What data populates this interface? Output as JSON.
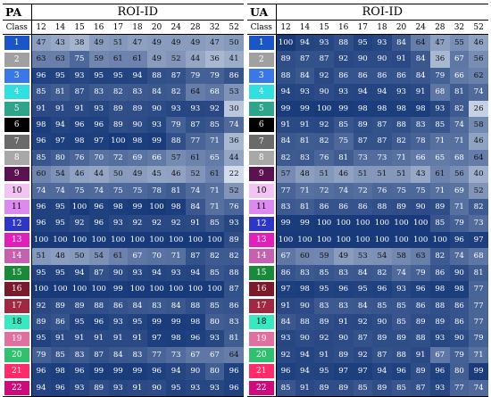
{
  "roi_ids": [
    "12",
    "14",
    "15",
    "16",
    "17",
    "18",
    "20",
    "24",
    "28",
    "32",
    "52"
  ],
  "class_colors": [
    "#1b55c8",
    "#a0a0a0",
    "#3a78e8",
    "#30e0e0",
    "#2ea58a",
    "#000000",
    "#6a6a6a",
    "#a8a8a8",
    "#5a1350",
    "#f2c4f2",
    "#dc8af0",
    "#2e36c8",
    "#e020b8",
    "#c860b0",
    "#1a8a3a",
    "#7a1a2a",
    "#a02840",
    "#38e8c0",
    "#e070a0",
    "#30c070",
    "#ff2b6b",
    "#d00a7a",
    "#fff233"
  ],
  "class_text_colors": [
    "#fff",
    "#fff",
    "#fff",
    "#fff",
    "#fff",
    "#fff",
    "#fff",
    "#fff",
    "#fff",
    "#000",
    "#000",
    "#fff",
    "#fff",
    "#fff",
    "#fff",
    "#fff",
    "#fff",
    "#000",
    "#fff",
    "#fff",
    "#fff",
    "#fff",
    "#000"
  ],
  "pa": {
    "title": "PA",
    "roi_label": "ROI-ID",
    "class_label": "Class",
    "rows": [
      {
        "cls": "1",
        "values": [
          "47",
          "43",
          "38",
          "49",
          "51",
          "47",
          "49",
          "49",
          "49",
          "47",
          "50"
        ]
      },
      {
        "cls": "2",
        "values": [
          "63",
          "63",
          "75",
          "59",
          "61",
          "61",
          "49",
          "52",
          "44",
          "36",
          "41"
        ]
      },
      {
        "cls": "3",
        "values": [
          "96",
          "95",
          "93",
          "95",
          "95",
          "94",
          "88",
          "87",
          "79",
          "79",
          "86"
        ]
      },
      {
        "cls": "4",
        "values": [
          "85",
          "81",
          "87",
          "83",
          "82",
          "83",
          "84",
          "82",
          "64",
          "68",
          "53"
        ]
      },
      {
        "cls": "5",
        "values": [
          "91",
          "91",
          "91",
          "93",
          "89",
          "89",
          "90",
          "93",
          "93",
          "92",
          "30"
        ]
      },
      {
        "cls": "6",
        "values": [
          "98",
          "94",
          "96",
          "96",
          "89",
          "90",
          "93",
          "79",
          "87",
          "85",
          "74"
        ]
      },
      {
        "cls": "7",
        "values": [
          "96",
          "97",
          "98",
          "97",
          "100",
          "98",
          "99",
          "88",
          "77",
          "71",
          "36"
        ]
      },
      {
        "cls": "8",
        "values": [
          "85",
          "80",
          "76",
          "70",
          "72",
          "69",
          "66",
          "57",
          "61",
          "65",
          "44"
        ]
      },
      {
        "cls": "9",
        "values": [
          "60",
          "54",
          "46",
          "44",
          "50",
          "49",
          "45",
          "46",
          "52",
          "61",
          "22"
        ]
      },
      {
        "cls": "10",
        "values": [
          "74",
          "74",
          "75",
          "74",
          "75",
          "75",
          "78",
          "81",
          "74",
          "71",
          "52"
        ]
      },
      {
        "cls": "11",
        "values": [
          "96",
          "95",
          "100",
          "96",
          "98",
          "99",
          "100",
          "98",
          "84",
          "71",
          "76"
        ]
      },
      {
        "cls": "12",
        "values": [
          "96",
          "95",
          "92",
          "96",
          "93",
          "92",
          "92",
          "92",
          "91",
          "85",
          "93"
        ]
      },
      {
        "cls": "13",
        "values": [
          "100",
          "100",
          "100",
          "100",
          "100",
          "100",
          "100",
          "100",
          "100",
          "100",
          "89"
        ]
      },
      {
        "cls": "14",
        "values": [
          "51",
          "48",
          "50",
          "54",
          "61",
          "67",
          "70",
          "71",
          "87",
          "82",
          "82"
        ]
      },
      {
        "cls": "15",
        "values": [
          "95",
          "95",
          "94",
          "87",
          "90",
          "93",
          "94",
          "93",
          "94",
          "85",
          "88"
        ]
      },
      {
        "cls": "16",
        "values": [
          "100",
          "100",
          "100",
          "100",
          "99",
          "100",
          "100",
          "100",
          "100",
          "100",
          "87"
        ]
      },
      {
        "cls": "17",
        "values": [
          "92",
          "89",
          "89",
          "88",
          "86",
          "84",
          "83",
          "84",
          "88",
          "85",
          "86"
        ]
      },
      {
        "cls": "18",
        "values": [
          "89",
          "86",
          "95",
          "96",
          "93",
          "95",
          "99",
          "99",
          "98",
          "80",
          "83"
        ]
      },
      {
        "cls": "19",
        "values": [
          "95",
          "91",
          "91",
          "91",
          "91",
          "91",
          "97",
          "98",
          "96",
          "93",
          "81"
        ]
      },
      {
        "cls": "20",
        "values": [
          "79",
          "85",
          "83",
          "87",
          "84",
          "83",
          "77",
          "73",
          "67",
          "67",
          "64"
        ]
      },
      {
        "cls": "21",
        "values": [
          "96",
          "98",
          "96",
          "99",
          "99",
          "99",
          "96",
          "94",
          "90",
          "80",
          "96"
        ]
      },
      {
        "cls": "22",
        "values": [
          "94",
          "96",
          "93",
          "89",
          "93",
          "91",
          "90",
          "95",
          "93",
          "93",
          "96"
        ]
      }
    ]
  },
  "ua": {
    "title": "UA",
    "roi_label": "ROI-ID",
    "class_label": "Class",
    "rows": [
      {
        "cls": "1",
        "values": [
          "100",
          "94",
          "93",
          "88",
          "95",
          "93",
          "84",
          "64",
          "47",
          "55",
          "46"
        ]
      },
      {
        "cls": "2",
        "values": [
          "89",
          "87",
          "87",
          "92",
          "90",
          "90",
          "91",
          "84",
          "36",
          "67",
          "56"
        ]
      },
      {
        "cls": "3",
        "values": [
          "88",
          "84",
          "92",
          "86",
          "86",
          "86",
          "86",
          "84",
          "79",
          "66",
          "62"
        ]
      },
      {
        "cls": "4",
        "values": [
          "94",
          "93",
          "90",
          "93",
          "94",
          "94",
          "93",
          "91",
          "68",
          "81",
          "74"
        ]
      },
      {
        "cls": "5",
        "values": [
          "99",
          "99",
          "100",
          "99",
          "98",
          "98",
          "98",
          "98",
          "93",
          "82",
          "26"
        ]
      },
      {
        "cls": "6",
        "values": [
          "91",
          "91",
          "92",
          "85",
          "89",
          "87",
          "88",
          "83",
          "85",
          "74",
          "58"
        ]
      },
      {
        "cls": "7",
        "values": [
          "84",
          "81",
          "82",
          "75",
          "87",
          "87",
          "82",
          "78",
          "71",
          "71",
          "46"
        ]
      },
      {
        "cls": "8",
        "values": [
          "82",
          "83",
          "76",
          "81",
          "73",
          "73",
          "71",
          "66",
          "65",
          "68",
          "64"
        ]
      },
      {
        "cls": "9",
        "values": [
          "57",
          "48",
          "51",
          "46",
          "51",
          "51",
          "51",
          "43",
          "61",
          "56",
          "40"
        ]
      },
      {
        "cls": "10",
        "values": [
          "77",
          "71",
          "72",
          "74",
          "72",
          "76",
          "75",
          "75",
          "71",
          "69",
          "52"
        ]
      },
      {
        "cls": "11",
        "values": [
          "83",
          "81",
          "86",
          "86",
          "86",
          "88",
          "89",
          "90",
          "89",
          "71",
          "82"
        ]
      },
      {
        "cls": "12",
        "values": [
          "99",
          "99",
          "100",
          "100",
          "100",
          "100",
          "100",
          "100",
          "85",
          "79",
          "73"
        ]
      },
      {
        "cls": "13",
        "values": [
          "100",
          "100",
          "100",
          "100",
          "100",
          "100",
          "100",
          "100",
          "100",
          "96",
          "97"
        ]
      },
      {
        "cls": "14",
        "values": [
          "67",
          "60",
          "59",
          "49",
          "53",
          "54",
          "58",
          "63",
          "82",
          "74",
          "68"
        ]
      },
      {
        "cls": "15",
        "values": [
          "86",
          "83",
          "85",
          "83",
          "84",
          "82",
          "74",
          "79",
          "86",
          "90",
          "81"
        ]
      },
      {
        "cls": "16",
        "values": [
          "97",
          "98",
          "95",
          "96",
          "95",
          "96",
          "93",
          "96",
          "98",
          "98",
          "77"
        ]
      },
      {
        "cls": "17",
        "values": [
          "91",
          "90",
          "83",
          "83",
          "84",
          "85",
          "85",
          "86",
          "88",
          "86",
          "77"
        ]
      },
      {
        "cls": "18",
        "values": [
          "84",
          "88",
          "89",
          "91",
          "92",
          "90",
          "85",
          "89",
          "89",
          "86",
          "77"
        ]
      },
      {
        "cls": "19",
        "values": [
          "93",
          "90",
          "92",
          "90",
          "87",
          "89",
          "89",
          "88",
          "93",
          "90",
          "79"
        ]
      },
      {
        "cls": "20",
        "values": [
          "92",
          "94",
          "91",
          "89",
          "92",
          "87",
          "88",
          "91",
          "67",
          "79",
          "71"
        ]
      },
      {
        "cls": "21",
        "values": [
          "96",
          "94",
          "95",
          "97",
          "97",
          "94",
          "96",
          "89",
          "96",
          "80",
          "99"
        ]
      },
      {
        "cls": "22",
        "values": [
          "85",
          "91",
          "89",
          "89",
          "85",
          "89",
          "85",
          "87",
          "93",
          "77",
          "74"
        ]
      }
    ]
  }
}
